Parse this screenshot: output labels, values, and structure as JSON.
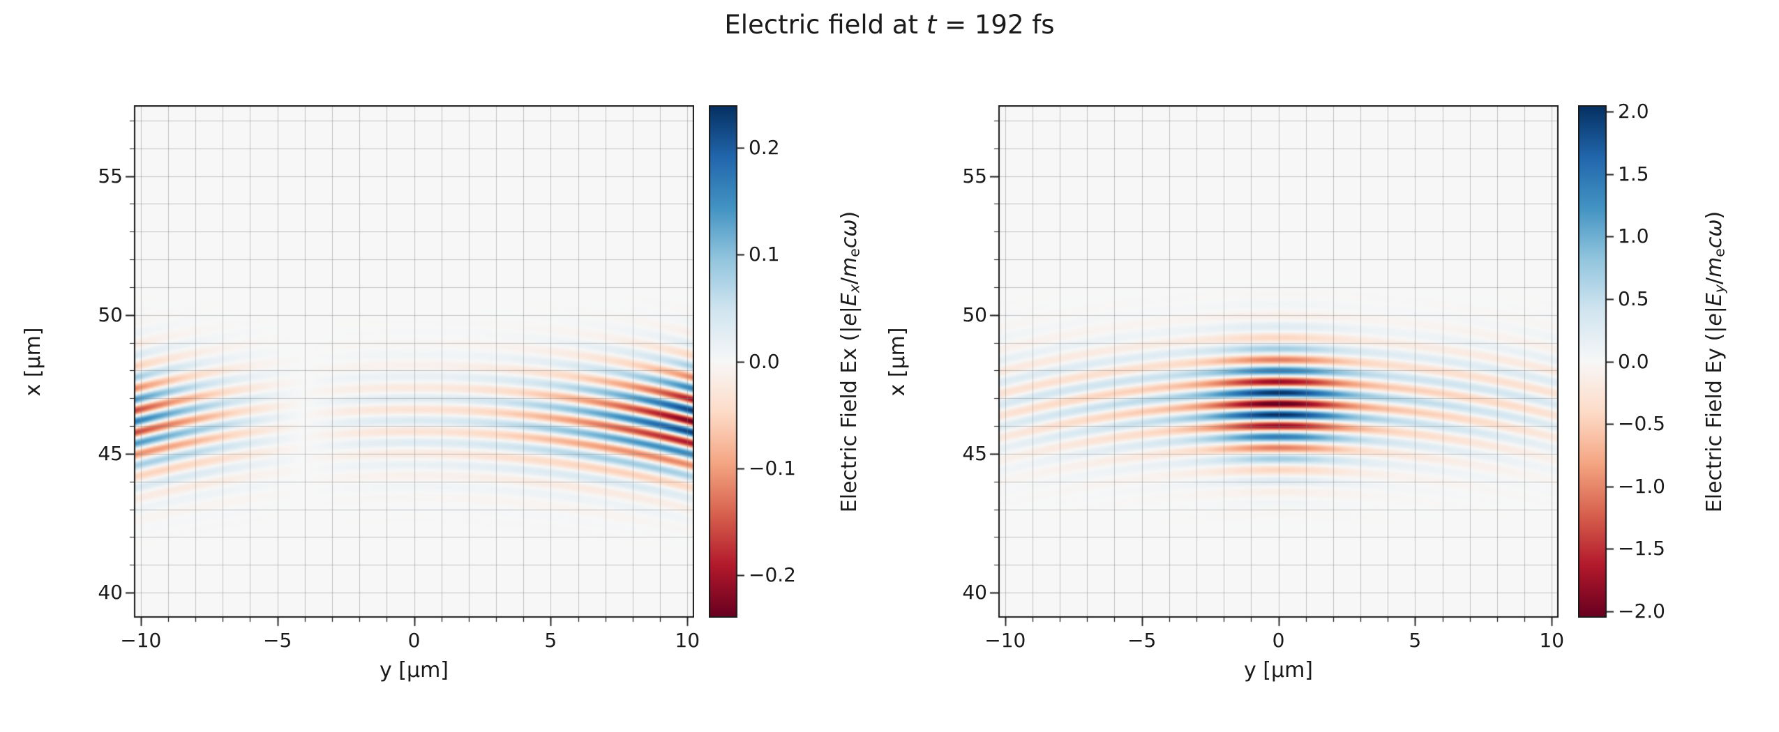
{
  "title_segments": [
    {
      "text": "Electric field at ",
      "style": "normal"
    },
    {
      "text": "t",
      "style": "italic"
    },
    {
      "text": " = 192 fs",
      "style": "normal"
    }
  ],
  "colors": {
    "background": "#ffffff",
    "plot_zero": "#f7f7f7",
    "spine": "#1a1a1a",
    "grid": "rgba(128,128,128,0.45)",
    "tick": "#1a1a1a",
    "text": "#1a1a1a",
    "colorbar_max_blue": "#053061",
    "colorbar_min_red": "#67001f"
  },
  "colormap": {
    "name": "RdBu",
    "stops": [
      "#67001f",
      "#b2182b",
      "#d6604d",
      "#f4a582",
      "#fddbc7",
      "#f7f7f7",
      "#d1e5f0",
      "#92c5de",
      "#4393c3",
      "#2166ac",
      "#053061"
    ]
  },
  "chart_data": [
    {
      "type": "heatmap",
      "field": "Ex",
      "xlabel": "y [μm]",
      "ylabel": "x [μm]",
      "xlim": [
        -10.25,
        10.25
      ],
      "ylim": [
        39.1,
        57.55
      ],
      "x_ticks": [
        -10,
        -5,
        0,
        5,
        10
      ],
      "y_ticks": [
        40,
        45,
        50,
        55
      ],
      "minor_step": 1,
      "grid": true,
      "clim": [
        -0.24,
        0.24
      ],
      "colorbar_ticks": [
        0.2,
        0.1,
        0.0,
        -0.1,
        -0.2
      ],
      "colorbar_tick_labels": [
        "0.2",
        "0.1",
        "0.0",
        "−0.1",
        "−0.2"
      ],
      "colorbar_label_segments": [
        {
          "text": "Electric Field Ex (|",
          "style": "normal"
        },
        {
          "text": "e",
          "style": "italic"
        },
        {
          "text": "|",
          "style": "normal"
        },
        {
          "text": "E",
          "style": "italic"
        },
        {
          "text": "x",
          "style": "italic-sub"
        },
        {
          "text": "/",
          "style": "normal"
        },
        {
          "text": "m",
          "style": "italic"
        },
        {
          "text": "e",
          "style": "sub"
        },
        {
          "text": "c",
          "style": "italic"
        },
        {
          "text": "ω",
          "style": "italic"
        },
        {
          "text": ")",
          "style": "normal"
        }
      ],
      "model": {
        "wavelength_um": 0.8,
        "phase_x0_um": 46.2,
        "envelope_center_x_um": 46.2,
        "envelope_sigma_x_um": 1.9,
        "curvature_radius_um": 42,
        "amplitude": 0.23,
        "transverse": {
          "type": "odd",
          "edge_exponent": 1.9,
          "edge_weight": 0.85,
          "even_offset": 0.15,
          "half_width_um": 10
        }
      }
    },
    {
      "type": "heatmap",
      "field": "Ey",
      "xlabel": "y [μm]",
      "ylabel": "x [μm]",
      "xlim": [
        -10.25,
        10.25
      ],
      "ylim": [
        39.1,
        57.55
      ],
      "x_ticks": [
        -10,
        -5,
        0,
        5,
        10
      ],
      "y_ticks": [
        40,
        45,
        50,
        55
      ],
      "minor_step": 1,
      "grid": true,
      "clim": [
        -2.05,
        2.05
      ],
      "colorbar_ticks": [
        2.0,
        1.5,
        1.0,
        0.5,
        0.0,
        -0.5,
        -1.0,
        -1.5,
        -2.0
      ],
      "colorbar_tick_labels": [
        "2.0",
        "1.5",
        "1.0",
        "0.5",
        "0.0",
        "−0.5",
        "−1.0",
        "−1.5",
        "−2.0"
      ],
      "colorbar_label_segments": [
        {
          "text": "Electric Field Ey (|",
          "style": "normal"
        },
        {
          "text": "e",
          "style": "italic"
        },
        {
          "text": "|",
          "style": "normal"
        },
        {
          "text": "E",
          "style": "italic"
        },
        {
          "text": "y",
          "style": "italic-sub"
        },
        {
          "text": "/",
          "style": "normal"
        },
        {
          "text": "m",
          "style": "italic"
        },
        {
          "text": "e",
          "style": "sub"
        },
        {
          "text": "c",
          "style": "italic"
        },
        {
          "text": "ω",
          "style": "italic"
        },
        {
          "text": ")",
          "style": "normal"
        }
      ],
      "model": {
        "wavelength_um": 0.8,
        "phase_x0_um": 46.4,
        "envelope_center_x_um": 46.8,
        "envelope_sigma_x_um": 1.9,
        "curvature_radius_um": 42,
        "amplitude": 2.1,
        "transverse": {
          "type": "even",
          "core_sigma_um": 2.3,
          "core_weight": 0.72,
          "wing_sigma_um": 12,
          "wing_weight": 0.3
        }
      }
    }
  ]
}
